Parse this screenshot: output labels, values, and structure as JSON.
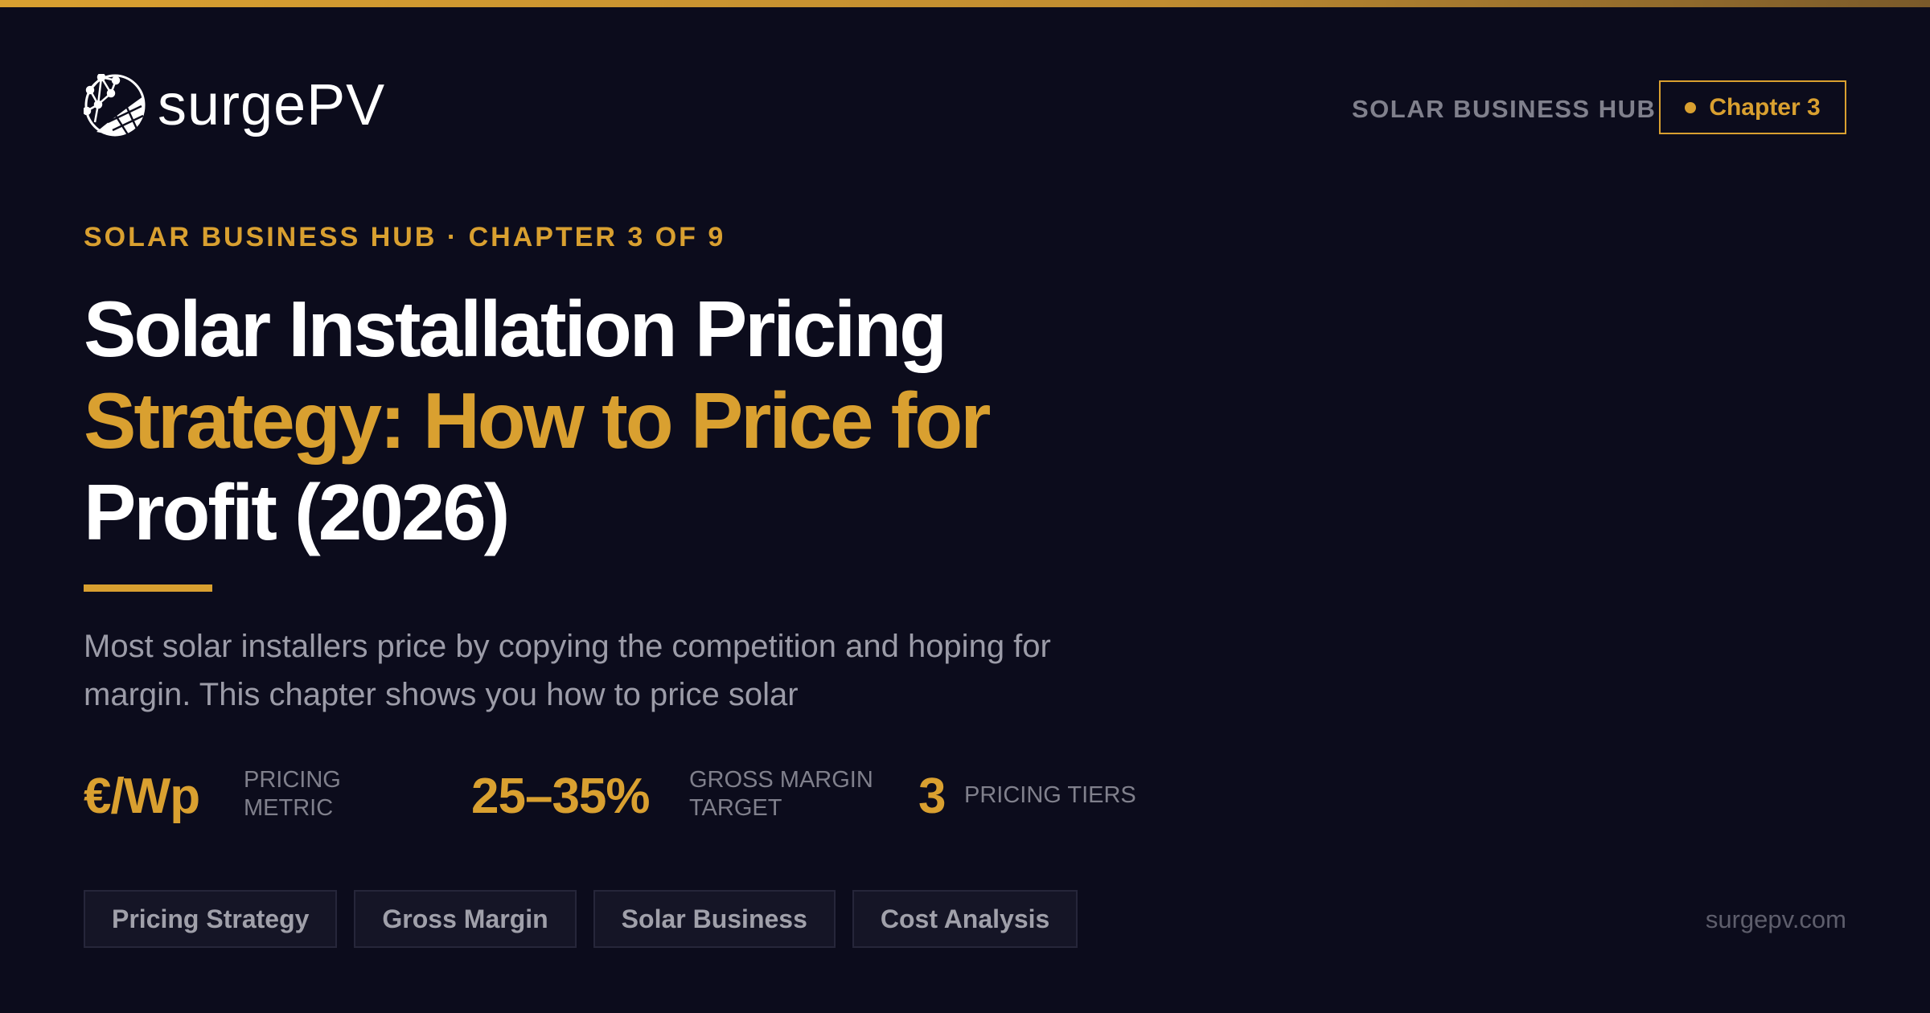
{
  "brand": {
    "name": "surgePV",
    "accent": "#d9a030",
    "background": "#0c0c1c"
  },
  "header": {
    "hub_label": "SOLAR BUSINESS HUB",
    "chapter_badge": "Chapter 3"
  },
  "hero": {
    "eyebrow": "SOLAR BUSINESS HUB · CHAPTER 3 OF 9",
    "title_line1": "Solar Installation Pricing",
    "title_line2": "Strategy: How to Price for",
    "title_line3": "Profit (2026)",
    "lede": "Most solar installers price by copying the competition and hoping for margin. This chapter shows you how to price solar"
  },
  "stats": [
    {
      "value": "€/Wp",
      "label": "PRICING METRIC"
    },
    {
      "value": "25–35%",
      "label": "GROSS MARGIN TARGET"
    },
    {
      "value": "3",
      "label": "PRICING TIERS"
    }
  ],
  "tags": [
    "Pricing Strategy",
    "Gross Margin",
    "Solar Business",
    "Cost Analysis"
  ],
  "footer": {
    "site": "surgepv.com"
  }
}
